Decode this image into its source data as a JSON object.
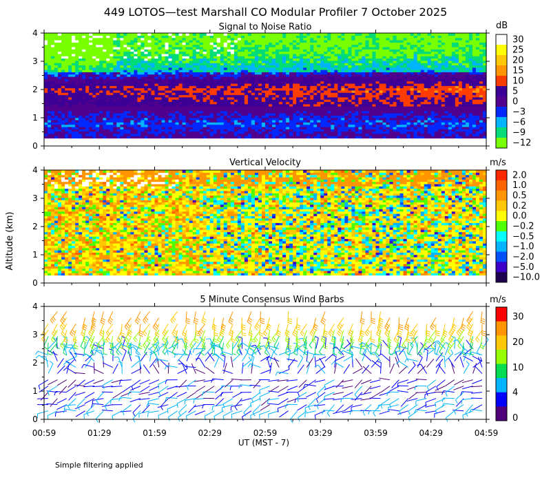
{
  "figure_title": "449 LOTOS—test Marshall CO Modular Profiler  7 October 2025",
  "footer_note": "Simple filtering applied",
  "chart_data": [
    {
      "type": "heatmap",
      "title": "Signal to Noise Ratio",
      "ylabel": "Altitude (km)",
      "xlabel": "UT  (MST - 7)",
      "x_ticks": [
        "00:59",
        "01:29",
        "01:59",
        "02:29",
        "02:59",
        "03:29",
        "03:59",
        "04:29",
        "04:59"
      ],
      "y_ticks": [
        "0",
        "1",
        "2",
        "3",
        "4"
      ],
      "ylim": [
        0,
        4
      ],
      "xrange_minutes": [
        59,
        299
      ],
      "colorbar_unit": "dB",
      "colorbar_labels": [
        "30",
        "25",
        "20",
        "15",
        "10",
        "5",
        "0",
        "−3",
        "−6",
        "−9",
        "−12"
      ],
      "colorbar_colors": [
        "#ffffff",
        "#ffff00",
        "#ffc800",
        "#ff9600",
        "#ff3c00",
        "#3c0096",
        "#50008c",
        "#0028ff",
        "#00b4ff",
        "#00dc78",
        "#78ff00"
      ],
      "profile_by_altitude_dB": [
        {
          "altitude_km": 0.3,
          "snr_db": 0
        },
        {
          "altitude_km": 0.8,
          "snr_db": -3
        },
        {
          "altitude_km": 1.5,
          "snr_db": 3
        },
        {
          "altitude_km": 2.0,
          "snr_db": 6
        },
        {
          "altitude_km": 2.6,
          "snr_db": -6
        },
        {
          "altitude_km": 3.2,
          "snr_db": -10
        },
        {
          "altitude_km": 4.0,
          "snr_db": -12
        }
      ]
    },
    {
      "type": "heatmap",
      "title": "Vertical Velocity",
      "ylabel": "Altitude (km)",
      "x_ticks": [
        "00:59",
        "01:29",
        "01:59",
        "02:29",
        "02:59",
        "03:29",
        "03:59",
        "04:29",
        "04:59"
      ],
      "y_ticks": [
        "0",
        "1",
        "2",
        "3",
        "4"
      ],
      "ylim": [
        0,
        4
      ],
      "colorbar_unit": "m/s",
      "colorbar_labels": [
        "2.0",
        "1.0",
        "0.5",
        "0.2",
        "0.0",
        "−0.2",
        "−0.5",
        "−1.0",
        "−2.0",
        "−5.0",
        "−10.0"
      ],
      "colorbar_colors": [
        "#ff2800",
        "#ff6400",
        "#ff9600",
        "#ffc800",
        "#ffff00",
        "#50ff00",
        "#00ffff",
        "#00b4ff",
        "#0050ff",
        "#3c00c8",
        "#1e0050"
      ]
    },
    {
      "type": "scatter",
      "title": "5 Minute Consensus Wind Barbs",
      "ylabel": "Altitude (km)",
      "xlabel": "UT  (MST - 7)",
      "x_ticks": [
        "00:59",
        "01:29",
        "01:59",
        "02:29",
        "02:59",
        "03:29",
        "03:59",
        "04:29",
        "04:59"
      ],
      "y_ticks": [
        "0",
        "1",
        "2",
        "3",
        "4"
      ],
      "ylim": [
        0,
        4
      ],
      "colorbar_unit": "m/s",
      "colorbar_labels": [
        "30",
        "20",
        "10",
        "4",
        "0"
      ],
      "colorbar_colors": [
        "#ff0000",
        "#ff9600",
        "#ffc800",
        "#96ff00",
        "#00dc50",
        "#00b4ff",
        "#0000ff",
        "#500078"
      ],
      "wind_speed_by_altitude_ms": [
        {
          "altitude_km": 0.5,
          "speed_ms": 4
        },
        {
          "altitude_km": 1.0,
          "speed_ms": 3
        },
        {
          "altitude_km": 1.5,
          "speed_ms": 2
        },
        {
          "altitude_km": 2.0,
          "speed_ms": 4
        },
        {
          "altitude_km": 2.5,
          "speed_ms": 5
        },
        {
          "altitude_km": 3.0,
          "speed_ms": 12
        },
        {
          "altitude_km": 3.5,
          "speed_ms": 20
        },
        {
          "altitude_km": 4.0,
          "speed_ms": 22
        }
      ]
    }
  ]
}
